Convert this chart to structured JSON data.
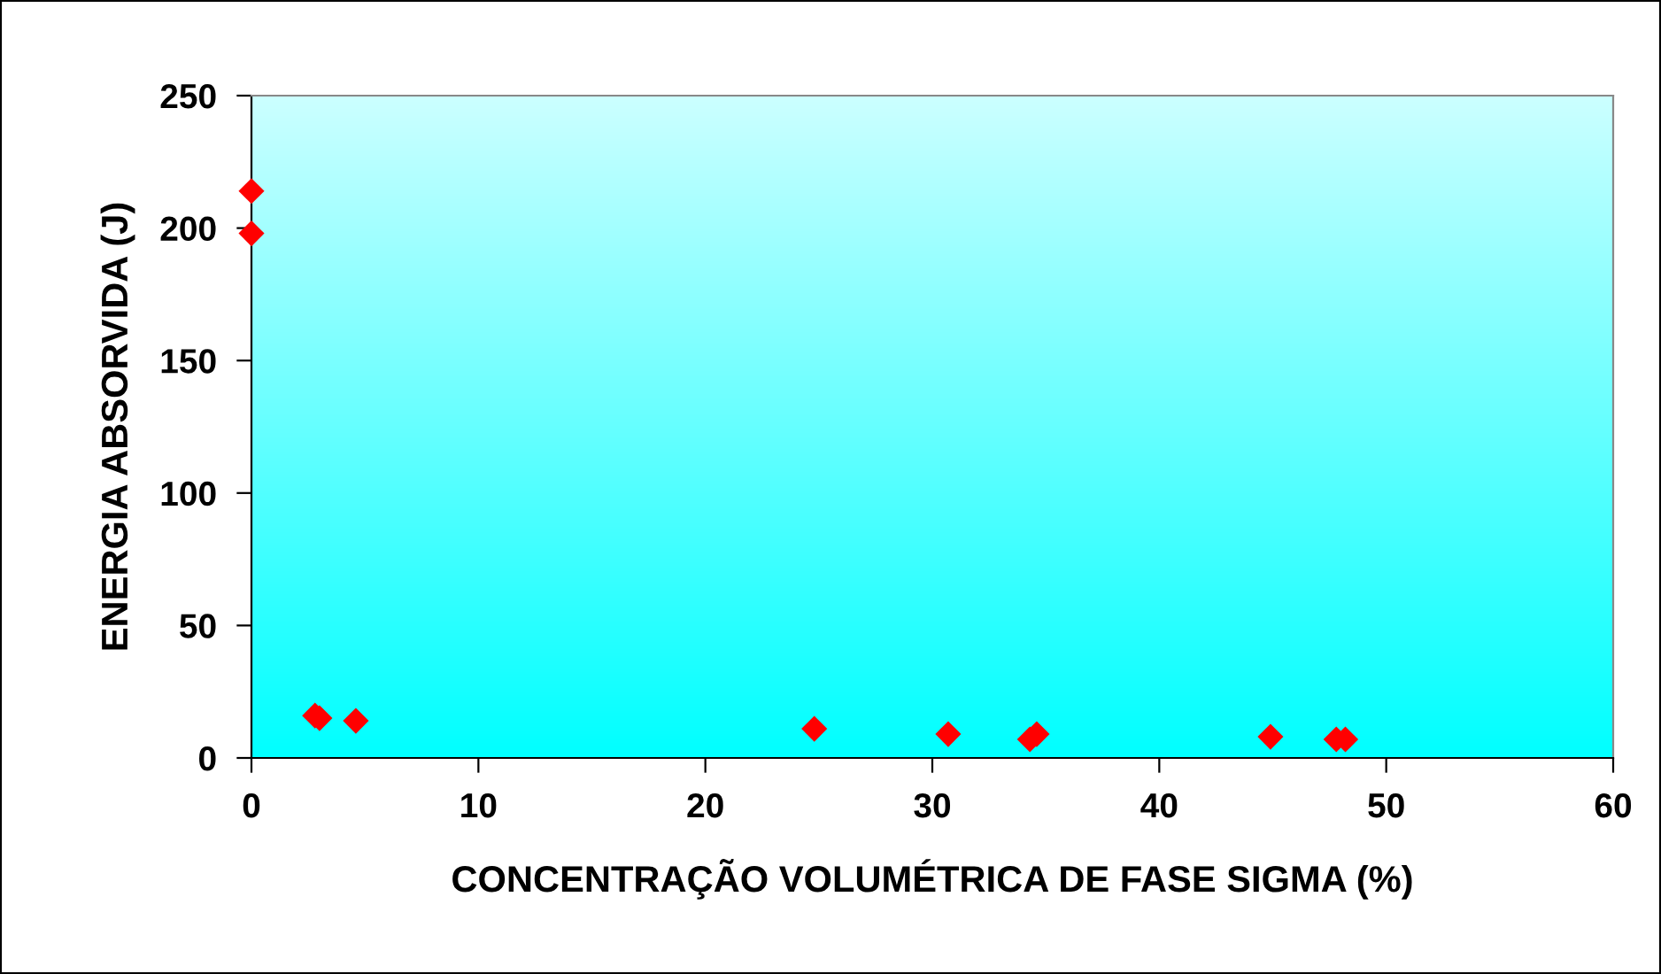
{
  "chart_data": {
    "type": "scatter",
    "xlabel": "CONCENTRAÇÃO VOLUMÉTRICA DE FASE SIGMA (%)",
    "ylabel": "ENERGIA ABSORVIDA (J)",
    "x": [
      0,
      0,
      2.8,
      3.0,
      4.6,
      24.8,
      30.7,
      34.3,
      34.6,
      44.9,
      47.8,
      48.2
    ],
    "series": [
      {
        "color": "#ff0000",
        "values": [
          214,
          198,
          16,
          15,
          14,
          11,
          9,
          7,
          9,
          8,
          7,
          7
        ]
      }
    ],
    "xlim": [
      0,
      60
    ],
    "ylim": [
      0,
      250
    ],
    "xticks": [
      0,
      10,
      20,
      30,
      40,
      50,
      60
    ],
    "yticks": [
      0,
      50,
      100,
      150,
      200,
      250
    ],
    "marker": "diamond",
    "grid": false,
    "legend": false
  }
}
